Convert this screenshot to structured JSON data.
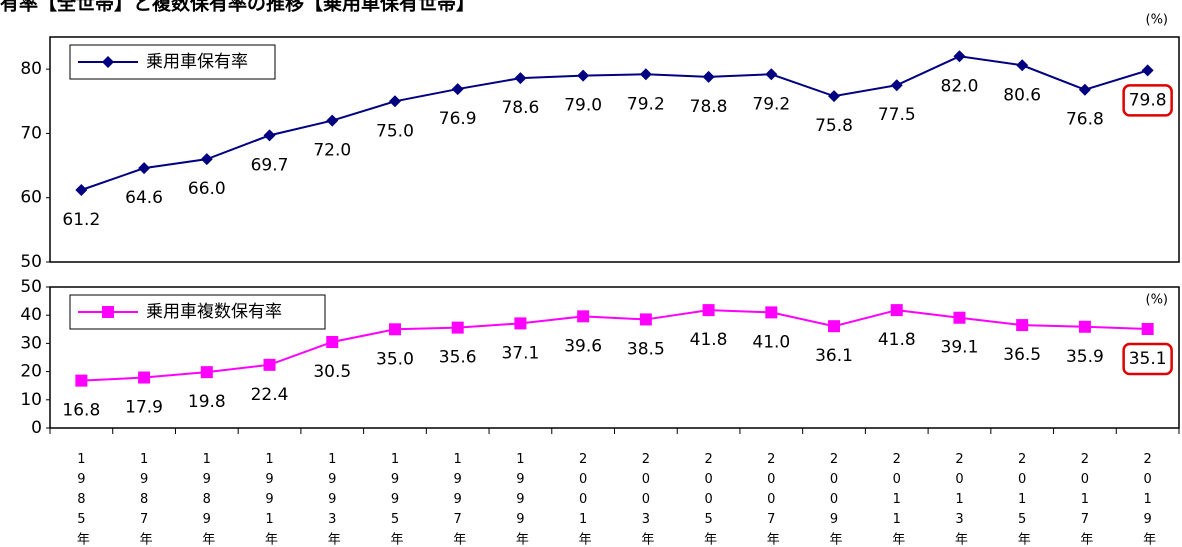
{
  "chart_data": [
    {
      "type": "line",
      "title": "有率【全世帯】と複数保有率の推移【乗用車保有世帯】",
      "unit": "(%)",
      "series": [
        {
          "name": "乗用車保有率",
          "color": "#000080",
          "marker": "diamond",
          "values": [
            61.2,
            64.6,
            66.0,
            69.7,
            72.0,
            75.0,
            76.9,
            78.6,
            79.0,
            79.2,
            78.8,
            79.2,
            75.8,
            77.5,
            82.0,
            80.6,
            76.8,
            79.8
          ],
          "value_labels": [
            "61.2",
            "64.6",
            "66.0",
            "69.7",
            "72.0",
            "75.0",
            "76.9",
            "78.6",
            "79.0",
            "79.2",
            "78.8",
            "79.2",
            "75.8",
            "77.5",
            "82.0",
            "80.6",
            "76.8",
            "79.8"
          ]
        }
      ],
      "ylim": [
        50,
        85
      ],
      "yticks": [
        50,
        60,
        70,
        80
      ],
      "legend": "upper left",
      "highlight_index": 17,
      "highlight_color": "#e00000"
    },
    {
      "type": "line",
      "unit": "(%)",
      "categories": [
        "1985年",
        "1987年",
        "1989年",
        "1991年",
        "1993年",
        "1995年",
        "1997年",
        "1999年",
        "2001年",
        "2003年",
        "2005年",
        "2007年",
        "2009年",
        "2011年",
        "2013年",
        "2015年",
        "2017年",
        "2019年"
      ],
      "series": [
        {
          "name": "乗用車複数保有率",
          "color": "#ff00ff",
          "marker": "square",
          "values": [
            16.8,
            17.9,
            19.8,
            22.4,
            30.5,
            35.0,
            35.6,
            37.1,
            39.6,
            38.5,
            41.8,
            41.0,
            36.1,
            41.8,
            39.1,
            36.5,
            35.9,
            35.1
          ],
          "value_labels": [
            "16.8",
            "17.9",
            "19.8",
            "22.4",
            "30.5",
            "35.0",
            "35.6",
            "37.1",
            "39.6",
            "38.5",
            "41.8",
            "41.0",
            "36.1",
            "41.8",
            "39.1",
            "36.5",
            "35.9",
            "35.1"
          ]
        }
      ],
      "ylim": [
        0,
        50
      ],
      "yticks": [
        0,
        10,
        20,
        30,
        40,
        50
      ],
      "legend": "upper left",
      "highlight_index": 17,
      "highlight_color": "#e00000"
    }
  ]
}
